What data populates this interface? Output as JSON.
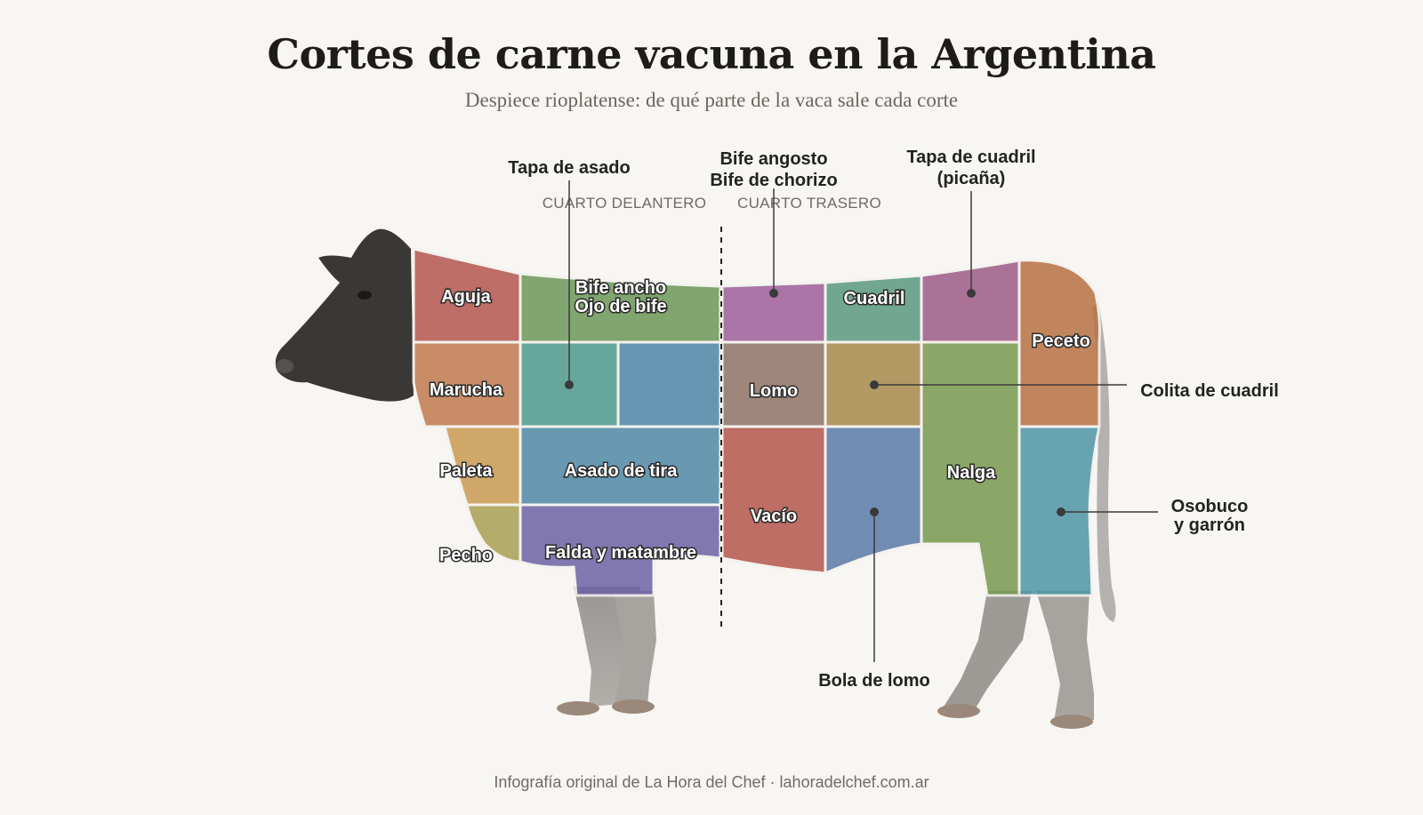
{
  "title": "Cortes de carne vacuna en la Argentina",
  "subtitle": "Despiece rioplatense: de qué parte de la vaca sale cada corte",
  "quarters": {
    "front": "CUARTO DELANTERO",
    "rear": "CUARTO TRASERO"
  },
  "cuts": {
    "aguja": "Aguja",
    "marucha": "Marucha",
    "paleta": "Paleta",
    "pecho": "Pecho",
    "bife_ancho_1": "Bife ancho",
    "bife_ancho_2": "Ojo de bife",
    "asado_de_tira": "Asado de tira",
    "falda": "Falda y matambre",
    "lomo": "Lomo",
    "vacio": "Vacío",
    "cuadril": "Cuadril",
    "nalga": "Nalga",
    "peceto": "Peceto"
  },
  "callouts": {
    "tapa_de_asado": "Tapa de asado",
    "bife_angosto_1": "Bife angosto",
    "bife_angosto_2": "Bife de chorizo",
    "tapa_cuadril_1": "Tapa de cuadril",
    "tapa_cuadril_2": "(picaña)",
    "colita": "Colita de cuadril",
    "osobuco_1": "Osobuco",
    "osobuco_2": "y garrón",
    "bola_de_lomo": "Bola de lomo"
  },
  "colors": {
    "aguja": "#b4564f",
    "marucha": "#c07a4e",
    "paleta": "#c99a52",
    "pecho": "#a9a053",
    "bife_ancho": "#6c9858",
    "tapa_de_asado": "#4e9a8c",
    "bife_ancho_lower": "#4e86a8",
    "asado_de_tira": "#4f89a6",
    "falda": "#6e63a6",
    "bife_angosto": "#9e5f9c",
    "lomo": "#8f7466",
    "vacio": "#b4574c",
    "cuadril": "#5a9a80",
    "colita": "#a8894c",
    "bola_de_lomo": "#5a7aa8",
    "tapa_cuadril": "#9e5c88",
    "nalga": "#789a4f",
    "peceto": "#b87244",
    "osobuco": "#4f95a8",
    "hide": "#3a3836"
  },
  "footer": "Infografía original de La Hora del Chef · lahoradelchef.com.ar"
}
